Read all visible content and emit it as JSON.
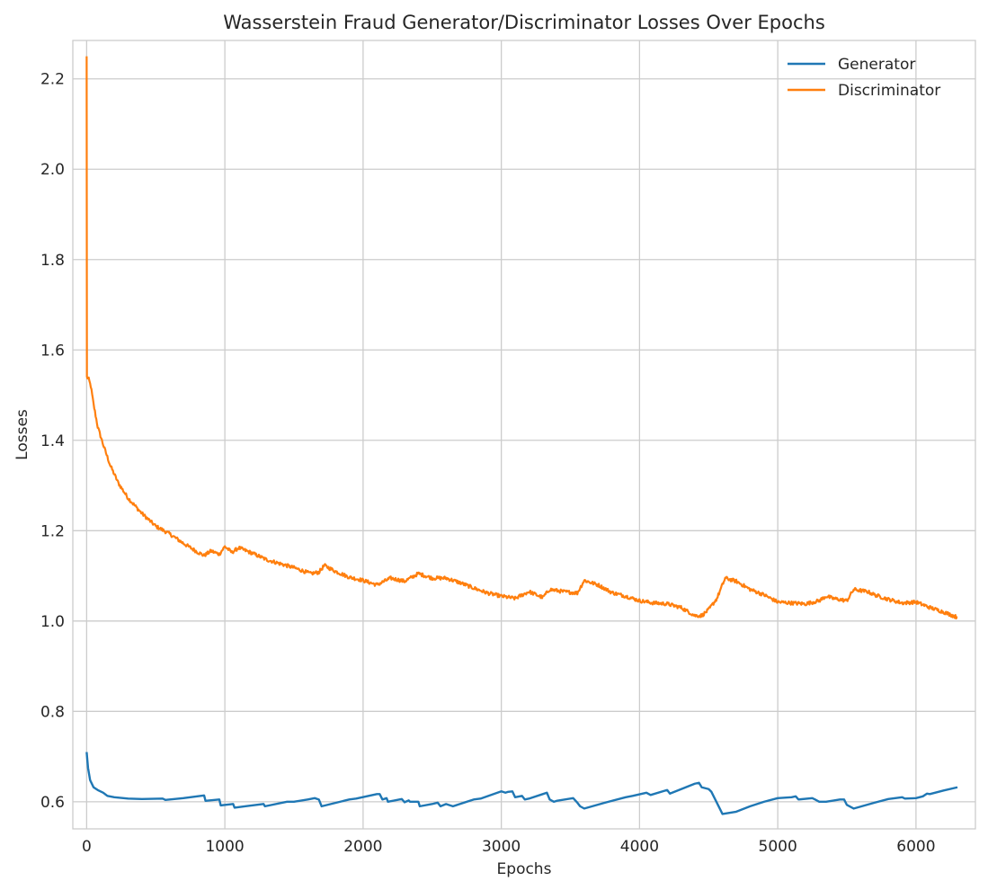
{
  "chart_data": {
    "type": "line",
    "title": "Wasserstein Fraud Generator/Discriminator Losses Over Epochs",
    "xlabel": "Epochs",
    "ylabel": "Losses",
    "xlim": [
      -100,
      6430
    ],
    "ylim": [
      0.54,
      2.285
    ],
    "x_ticks": [
      0,
      1000,
      2000,
      3000,
      4000,
      5000,
      6000
    ],
    "y_ticks": [
      0.6,
      0.8,
      1.0,
      1.2,
      1.4,
      1.6,
      1.8,
      2.0,
      2.2
    ],
    "x_tick_labels": [
      "0",
      "1000",
      "2000",
      "3000",
      "4000",
      "5000",
      "6000"
    ],
    "y_tick_labels": [
      "0.6",
      "0.8",
      "1.0",
      "1.2",
      "1.4",
      "1.6",
      "1.8",
      "2.0",
      "2.2"
    ],
    "grid": true,
    "legend_position": "top-right",
    "series": [
      {
        "name": "Generator",
        "color": "#1f77b4",
        "points": [
          [
            0,
            0.71
          ],
          [
            10,
            0.675
          ],
          [
            25,
            0.648
          ],
          [
            50,
            0.632
          ],
          [
            80,
            0.626
          ],
          [
            120,
            0.62
          ],
          [
            150,
            0.613
          ],
          [
            200,
            0.61
          ],
          [
            300,
            0.607
          ],
          [
            400,
            0.606
          ],
          [
            550,
            0.607
          ],
          [
            570,
            0.604
          ],
          [
            700,
            0.608
          ],
          [
            850,
            0.614
          ],
          [
            860,
            0.602
          ],
          [
            960,
            0.605
          ],
          [
            970,
            0.592
          ],
          [
            1060,
            0.595
          ],
          [
            1070,
            0.587
          ],
          [
            1150,
            0.59
          ],
          [
            1280,
            0.595
          ],
          [
            1290,
            0.59
          ],
          [
            1450,
            0.6
          ],
          [
            1500,
            0.6
          ],
          [
            1600,
            0.605
          ],
          [
            1650,
            0.608
          ],
          [
            1680,
            0.605
          ],
          [
            1700,
            0.59
          ],
          [
            1900,
            0.605
          ],
          [
            1950,
            0.607
          ],
          [
            2100,
            0.617
          ],
          [
            2120,
            0.617
          ],
          [
            2140,
            0.605
          ],
          [
            2170,
            0.608
          ],
          [
            2180,
            0.6
          ],
          [
            2280,
            0.606
          ],
          [
            2300,
            0.599
          ],
          [
            2330,
            0.603
          ],
          [
            2340,
            0.6
          ],
          [
            2400,
            0.6
          ],
          [
            2410,
            0.59
          ],
          [
            2500,
            0.595
          ],
          [
            2540,
            0.598
          ],
          [
            2560,
            0.59
          ],
          [
            2600,
            0.595
          ],
          [
            2650,
            0.59
          ],
          [
            2800,
            0.605
          ],
          [
            2850,
            0.607
          ],
          [
            3000,
            0.623
          ],
          [
            3030,
            0.62
          ],
          [
            3050,
            0.622
          ],
          [
            3080,
            0.623
          ],
          [
            3100,
            0.61
          ],
          [
            3150,
            0.613
          ],
          [
            3170,
            0.605
          ],
          [
            3200,
            0.607
          ],
          [
            3300,
            0.617
          ],
          [
            3330,
            0.62
          ],
          [
            3350,
            0.605
          ],
          [
            3380,
            0.6
          ],
          [
            3400,
            0.602
          ],
          [
            3520,
            0.608
          ],
          [
            3550,
            0.598
          ],
          [
            3570,
            0.59
          ],
          [
            3600,
            0.585
          ],
          [
            3750,
            0.598
          ],
          [
            3900,
            0.61
          ],
          [
            3950,
            0.613
          ],
          [
            4050,
            0.62
          ],
          [
            4080,
            0.615
          ],
          [
            4200,
            0.626
          ],
          [
            4220,
            0.618
          ],
          [
            4400,
            0.64
          ],
          [
            4430,
            0.642
          ],
          [
            4450,
            0.632
          ],
          [
            4500,
            0.628
          ],
          [
            4520,
            0.622
          ],
          [
            4600,
            0.573
          ],
          [
            4700,
            0.578
          ],
          [
            4800,
            0.59
          ],
          [
            4900,
            0.6
          ],
          [
            5000,
            0.608
          ],
          [
            5100,
            0.61
          ],
          [
            5130,
            0.612
          ],
          [
            5150,
            0.605
          ],
          [
            5250,
            0.608
          ],
          [
            5270,
            0.605
          ],
          [
            5300,
            0.6
          ],
          [
            5350,
            0.6
          ],
          [
            5450,
            0.605
          ],
          [
            5480,
            0.605
          ],
          [
            5500,
            0.593
          ],
          [
            5550,
            0.585
          ],
          [
            5700,
            0.598
          ],
          [
            5800,
            0.606
          ],
          [
            5900,
            0.61
          ],
          [
            5920,
            0.607
          ],
          [
            6000,
            0.608
          ],
          [
            6050,
            0.612
          ],
          [
            6080,
            0.618
          ],
          [
            6100,
            0.617
          ],
          [
            6200,
            0.625
          ],
          [
            6300,
            0.632
          ]
        ]
      },
      {
        "name": "Discriminator",
        "color": "#ff7f0e",
        "noise": 0.004,
        "points": [
          [
            0,
            2.25
          ],
          [
            2,
            1.54
          ],
          [
            15,
            1.535
          ],
          [
            30,
            1.52
          ],
          [
            50,
            1.48
          ],
          [
            80,
            1.43
          ],
          [
            120,
            1.39
          ],
          [
            170,
            1.345
          ],
          [
            230,
            1.305
          ],
          [
            300,
            1.272
          ],
          [
            400,
            1.238
          ],
          [
            500,
            1.21
          ],
          [
            600,
            1.193
          ],
          [
            700,
            1.172
          ],
          [
            800,
            1.153
          ],
          [
            850,
            1.145
          ],
          [
            900,
            1.155
          ],
          [
            960,
            1.148
          ],
          [
            1000,
            1.165
          ],
          [
            1050,
            1.152
          ],
          [
            1100,
            1.162
          ],
          [
            1200,
            1.15
          ],
          [
            1300,
            1.136
          ],
          [
            1400,
            1.127
          ],
          [
            1500,
            1.118
          ],
          [
            1620,
            1.105
          ],
          [
            1680,
            1.108
          ],
          [
            1720,
            1.123
          ],
          [
            1800,
            1.11
          ],
          [
            1900,
            1.097
          ],
          [
            2000,
            1.09
          ],
          [
            2100,
            1.08
          ],
          [
            2200,
            1.095
          ],
          [
            2300,
            1.088
          ],
          [
            2400,
            1.105
          ],
          [
            2500,
            1.095
          ],
          [
            2600,
            1.095
          ],
          [
            2700,
            1.085
          ],
          [
            2800,
            1.073
          ],
          [
            2900,
            1.062
          ],
          [
            3000,
            1.055
          ],
          [
            3100,
            1.05
          ],
          [
            3200,
            1.065
          ],
          [
            3300,
            1.052
          ],
          [
            3350,
            1.07
          ],
          [
            3450,
            1.065
          ],
          [
            3550,
            1.062
          ],
          [
            3600,
            1.09
          ],
          [
            3700,
            1.08
          ],
          [
            3800,
            1.063
          ],
          [
            3900,
            1.055
          ],
          [
            4000,
            1.045
          ],
          [
            4100,
            1.04
          ],
          [
            4200,
            1.038
          ],
          [
            4300,
            1.03
          ],
          [
            4400,
            1.012
          ],
          [
            4450,
            1.012
          ],
          [
            4500,
            1.025
          ],
          [
            4560,
            1.05
          ],
          [
            4620,
            1.095
          ],
          [
            4700,
            1.088
          ],
          [
            4800,
            1.07
          ],
          [
            4900,
            1.058
          ],
          [
            5000,
            1.042
          ],
          [
            5100,
            1.04
          ],
          [
            5200,
            1.038
          ],
          [
            5300,
            1.045
          ],
          [
            5350,
            1.055
          ],
          [
            5400,
            1.05
          ],
          [
            5500,
            1.045
          ],
          [
            5550,
            1.07
          ],
          [
            5650,
            1.065
          ],
          [
            5700,
            1.058
          ],
          [
            5800,
            1.048
          ],
          [
            5900,
            1.04
          ],
          [
            6000,
            1.042
          ],
          [
            6100,
            1.03
          ],
          [
            6200,
            1.02
          ],
          [
            6300,
            1.008
          ]
        ]
      }
    ]
  }
}
